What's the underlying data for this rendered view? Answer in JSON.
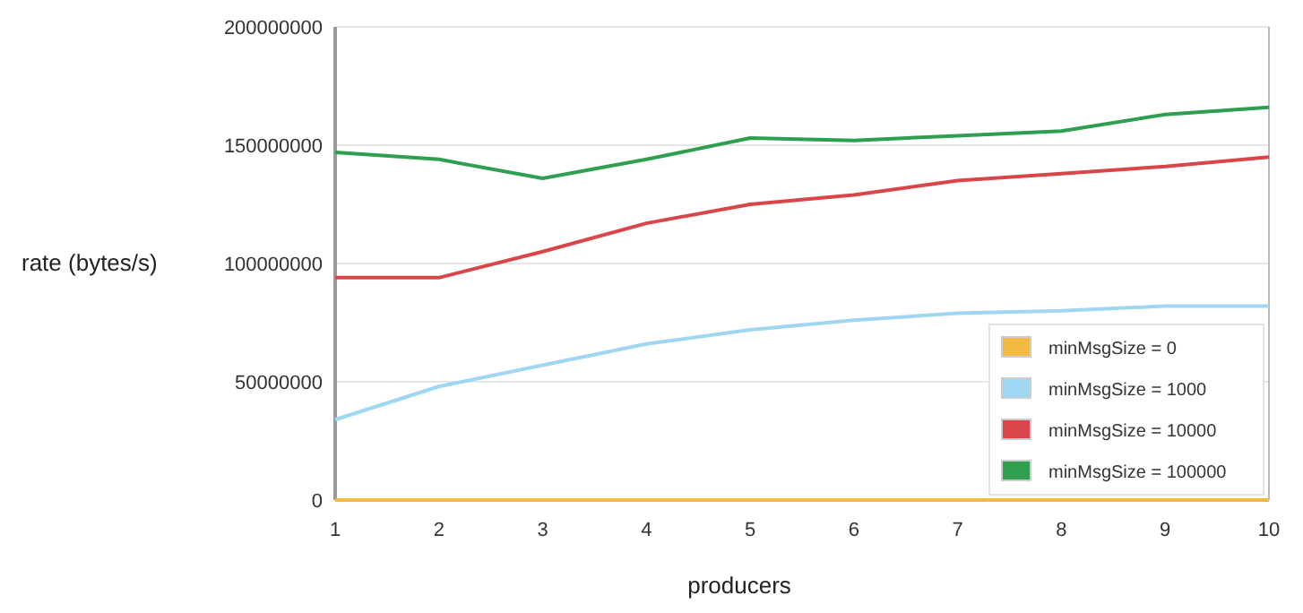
{
  "chart_data": {
    "type": "line",
    "xlabel": "producers",
    "ylabel": "rate (bytes/s)",
    "x": [
      1,
      2,
      3,
      4,
      5,
      6,
      7,
      8,
      9,
      10
    ],
    "xlim": [
      1,
      10
    ],
    "xticks": [
      1,
      2,
      3,
      4,
      5,
      6,
      7,
      8,
      9,
      10
    ],
    "ylim": [
      0,
      200000000
    ],
    "yticks": [
      0,
      50000000,
      100000000,
      150000000,
      200000000
    ],
    "grid": "y",
    "legend": "bottom right",
    "marker": "none",
    "line_style": "solid",
    "series": [
      {
        "name": "minMsgSize = 0",
        "color": "#f4b942",
        "values": [
          0,
          0,
          0,
          0,
          0,
          0,
          0,
          0,
          0,
          0
        ]
      },
      {
        "name": "minMsgSize = 1000",
        "color": "#9fd6f2",
        "values": [
          34000000,
          48000000,
          57000000,
          66000000,
          72000000,
          76000000,
          79000000,
          80000000,
          82000000,
          82000000
        ]
      },
      {
        "name": "minMsgSize = 10000",
        "color": "#d9464a",
        "values": [
          94000000,
          94000000,
          105000000,
          117000000,
          125000000,
          129000000,
          135000000,
          138000000,
          141000000,
          145000000
        ]
      },
      {
        "name": "minMsgSize = 100000",
        "color": "#2e9e4f",
        "values": [
          147000000,
          144000000,
          136000000,
          144000000,
          153000000,
          152000000,
          154000000,
          156000000,
          163000000,
          166000000
        ]
      }
    ]
  }
}
